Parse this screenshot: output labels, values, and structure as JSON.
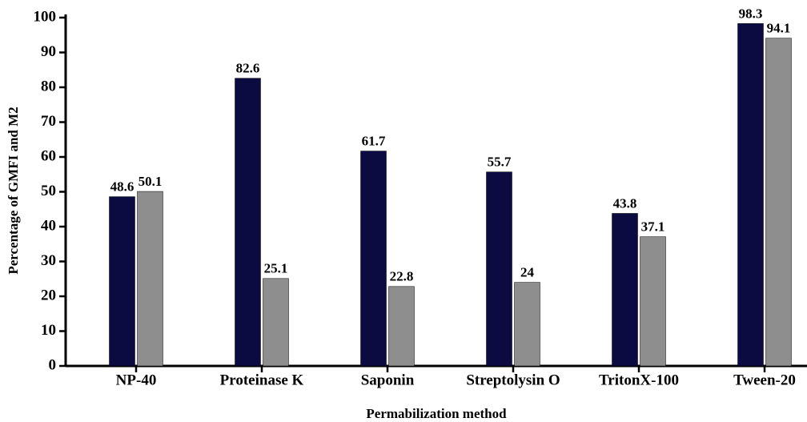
{
  "chart_data": {
    "type": "bar",
    "x_label": "Permabilization method",
    "y_label": "Percentage of GMFI and M2",
    "categories": [
      "NP-40",
      "Proteinase K",
      "Saponin",
      "Streptolysin O",
      "TritonX-100",
      "Tween-20"
    ],
    "series": [
      {
        "color": "#0b0b42",
        "values": [
          48.6,
          82.6,
          61.7,
          55.7,
          43.8,
          98.3
        ]
      },
      {
        "color": "#8e8e8e",
        "values": [
          50.1,
          25.1,
          22.8,
          24,
          37.1,
          94.1
        ]
      }
    ],
    "ylim": [
      0,
      100
    ],
    "yticks": [
      0,
      10,
      20,
      30,
      40,
      50,
      60,
      70,
      80,
      90,
      100
    ]
  }
}
